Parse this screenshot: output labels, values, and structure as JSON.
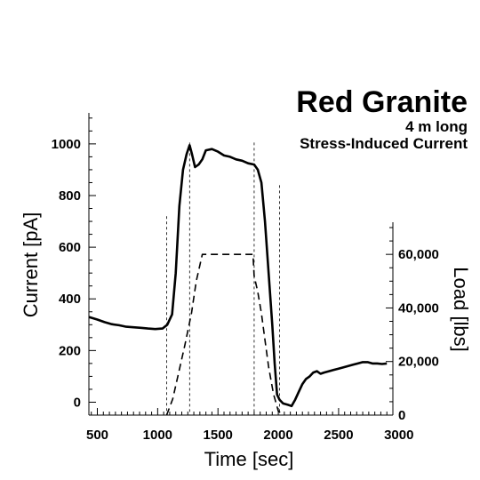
{
  "chart_data": {
    "type": "line",
    "title": "Red Granite",
    "subtitle_1": "4 m long",
    "subtitle_2": "Stress-Induced Current",
    "xlabel": "Time [sec]",
    "ylabel": "Current [pA]",
    "y2label": "Load [lbs]",
    "xlim": [
      430,
      2950
    ],
    "ylim": [
      -50,
      1120
    ],
    "y2lim": [
      0,
      72000
    ],
    "x_ticks": [
      500,
      1000,
      1500,
      2000,
      2500,
      3000
    ],
    "x_tick_labels": [
      "500",
      "1000",
      "1500",
      "2000",
      "2500",
      "3000"
    ],
    "y_ticks": [
      0,
      200,
      400,
      600,
      800,
      1000
    ],
    "y_tick_labels": [
      "0",
      "200",
      "400",
      "600",
      "800",
      "1000"
    ],
    "y2_ticks": [
      0,
      20000,
      40000,
      60000
    ],
    "y2_tick_labels": [
      "0",
      "20,000",
      "40,000",
      "60,000"
    ],
    "vlines": [
      {
        "x": 1075,
        "y_top": 720
      },
      {
        "x": 1265,
        "y_top": 1005
      },
      {
        "x": 1800,
        "y_top": 1005
      },
      {
        "x": 2010,
        "y_top": 840
      }
    ],
    "series": [
      {
        "axis": "left",
        "style": "solid",
        "x": [
          430,
          500,
          560,
          620,
          680,
          740,
          800,
          860,
          920,
          980,
          1040,
          1080,
          1120,
          1150,
          1180,
          1210,
          1240,
          1265,
          1285,
          1310,
          1340,
          1370,
          1400,
          1450,
          1500,
          1550,
          1600,
          1650,
          1700,
          1750,
          1800,
          1830,
          1860,
          1890,
          1920,
          1950,
          1970,
          1990,
          2010,
          2040,
          2080,
          2110,
          2140,
          2170,
          2200,
          2230,
          2260,
          2290,
          2320,
          2350,
          2380,
          2420,
          2460,
          2500,
          2540,
          2580,
          2620,
          2660,
          2700,
          2740,
          2780,
          2820,
          2860,
          2900
        ],
        "y": [
          330,
          320,
          310,
          302,
          298,
          292,
          290,
          288,
          285,
          283,
          285,
          300,
          340,
          500,
          760,
          900,
          960,
          995,
          960,
          910,
          920,
          940,
          975,
          980,
          970,
          955,
          950,
          940,
          935,
          925,
          920,
          900,
          850,
          700,
          500,
          300,
          150,
          30,
          10,
          -5,
          -10,
          -15,
          10,
          40,
          70,
          90,
          100,
          115,
          120,
          110,
          115,
          120,
          125,
          130,
          135,
          140,
          145,
          150,
          155,
          155,
          150,
          150,
          148,
          150
        ]
      },
      {
        "axis": "right",
        "style": "dashed",
        "x": [
          1075,
          1125,
          1175,
          1225,
          1280,
          1320,
          1370,
          1410,
          1500,
          1600,
          1700,
          1790,
          1800,
          1830,
          1860,
          1890,
          1920,
          1960,
          2000,
          2040
        ],
        "y": [
          0,
          6000,
          16000,
          26000,
          38000,
          50000,
          60000,
          60000,
          60000,
          60000,
          60000,
          60000,
          52000,
          46000,
          38000,
          28000,
          18000,
          8000,
          1500,
          0
        ]
      }
    ]
  }
}
